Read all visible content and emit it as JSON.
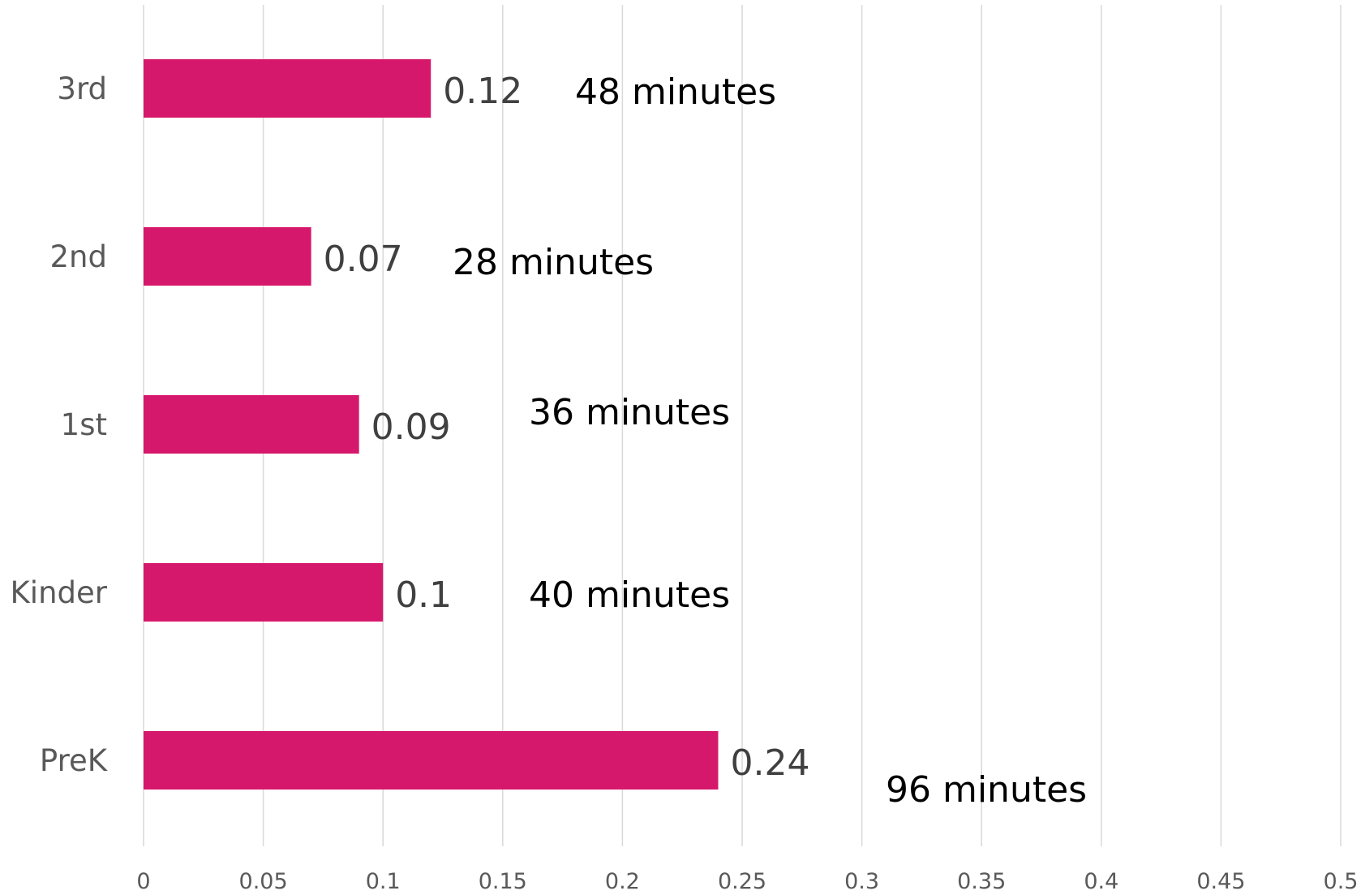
{
  "chart_data": {
    "type": "bar",
    "orientation": "horizontal",
    "categories": [
      "3rd",
      "2nd",
      "1st",
      "Kinder",
      "PreK"
    ],
    "values": [
      0.12,
      0.07,
      0.09,
      0.1,
      0.24
    ],
    "value_labels": [
      "0.12",
      "0.07",
      "0.09",
      "0.1",
      "0.24"
    ],
    "annotations": [
      "48 minutes",
      "28 minutes",
      "36 minutes",
      "40 minutes",
      "96 minutes"
    ],
    "xlim": [
      0,
      0.5
    ],
    "x_ticks": [
      0,
      0.05,
      0.1,
      0.15,
      0.2,
      0.25,
      0.3,
      0.35,
      0.4,
      0.45,
      0.5
    ],
    "x_tick_labels": [
      "0",
      "0.05",
      "0.1",
      "0.15",
      "0.2",
      "0.25",
      "0.3",
      "0.35",
      "0.4",
      "0.45",
      "0.5"
    ],
    "grid": "vertical",
    "legend": "none",
    "title": "",
    "xlabel": "",
    "ylabel": "",
    "colors": {
      "bar": "#d6186c",
      "grid": "#d9d9d9"
    }
  }
}
